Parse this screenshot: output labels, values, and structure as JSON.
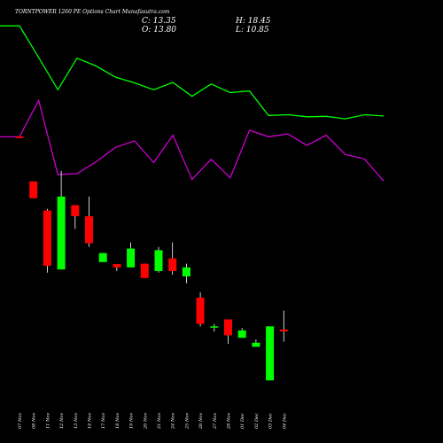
{
  "header": {
    "title": "TORNTPOWER 1260 PE Options Chart Munafasutra.com",
    "close_label": "C: 13.35",
    "high_label": "H: 18.45",
    "open_label": "O: 13.80",
    "low_label": "L: 10.85"
  },
  "colors": {
    "background": "#000000",
    "up_candle": "#00ff00",
    "down_candle": "#ff0000",
    "green_line": "#00ff00",
    "magenta_line": "#cc00cc",
    "wick": "#ffffff"
  },
  "chart_data": {
    "type": "candlestick",
    "title": "TORNTPOWER 1260 PE Options Chart Munafasutra.com",
    "categories": [
      "07 Nov",
      "08 Nov",
      "11 Nov",
      "12 Nov",
      "13 Nov",
      "14 Nov",
      "17 Nov",
      "18 Nov",
      "19 Nov",
      "20 Nov",
      "21 Nov",
      "24 Nov",
      "25 Nov",
      "26 Nov",
      "27 Nov",
      "28 Nov",
      "01 Dec",
      "02 Dec",
      "03 Dec",
      "04 Dec"
    ],
    "ohlc": [
      {
        "open": 61.0,
        "high": 61.0,
        "low": 60.6,
        "close": 60.6
      },
      {
        "open": 50.0,
        "high": 50.0,
        "low": 45.9,
        "close": 45.9
      },
      {
        "open": 42.9,
        "high": 43.3,
        "low": 27.7,
        "close": 29.4
      },
      {
        "open": 28.5,
        "high": 52.6,
        "low": 28.5,
        "close": 46.3
      },
      {
        "open": 44.2,
        "high": 44.2,
        "low": 38.4,
        "close": 41.5
      },
      {
        "open": 41.5,
        "high": 46.3,
        "low": 34.0,
        "close": 34.9
      },
      {
        "open": 30.3,
        "high": 32.5,
        "low": 30.3,
        "close": 32.5
      },
      {
        "open": 29.8,
        "high": 29.8,
        "low": 28.1,
        "close": 29.0
      },
      {
        "open": 29.0,
        "high": 35.1,
        "low": 29.0,
        "close": 33.6
      },
      {
        "open": 29.9,
        "high": 29.9,
        "low": 26.4,
        "close": 26.4
      },
      {
        "open": 28.1,
        "high": 34.0,
        "low": 27.7,
        "close": 33.2
      },
      {
        "open": 31.2,
        "high": 35.1,
        "low": 27.2,
        "close": 28.1
      },
      {
        "open": 26.8,
        "high": 29.9,
        "low": 25.1,
        "close": 29.0
      },
      {
        "open": 21.6,
        "high": 22.9,
        "low": 14.6,
        "close": 15.2
      },
      {
        "open": 14.6,
        "high": 15.2,
        "low": 13.3,
        "close": 14.6
      },
      {
        "open": 16.3,
        "high": 16.3,
        "low": 10.3,
        "close": 12.4
      },
      {
        "open": 11.8,
        "high": 14.2,
        "low": 11.8,
        "close": 13.6
      },
      {
        "open": 9.6,
        "high": 11.4,
        "low": 9.6,
        "close": 10.6
      },
      {
        "open": 1.4,
        "high": 14.6,
        "low": 1.4,
        "close": 14.6
      },
      {
        "open": 13.8,
        "high": 18.45,
        "low": 10.85,
        "close": 13.35
      }
    ],
    "overlay_lines": [
      {
        "color": "#00ff00",
        "values": [
          88.0,
          88.0,
          80.3,
          72.4,
          80.1,
          78.2,
          75.5,
          74.1,
          72.4,
          74.2,
          70.8,
          73.8,
          71.7,
          72.1,
          66.1,
          66.3,
          65.8,
          65.9,
          65.3,
          66.3,
          66.0
        ]
      },
      {
        "color": "#cc00cc",
        "values": [
          60.9,
          60.9,
          69.8,
          51.7,
          51.9,
          54.8,
          58.3,
          59.9,
          54.6,
          61.3,
          50.5,
          55.4,
          50.9,
          62.5,
          60.9,
          61.6,
          58.8,
          61.3,
          56.6,
          55.5,
          50.1
        ]
      }
    ],
    "ylim": [
      -2,
      90
    ]
  }
}
